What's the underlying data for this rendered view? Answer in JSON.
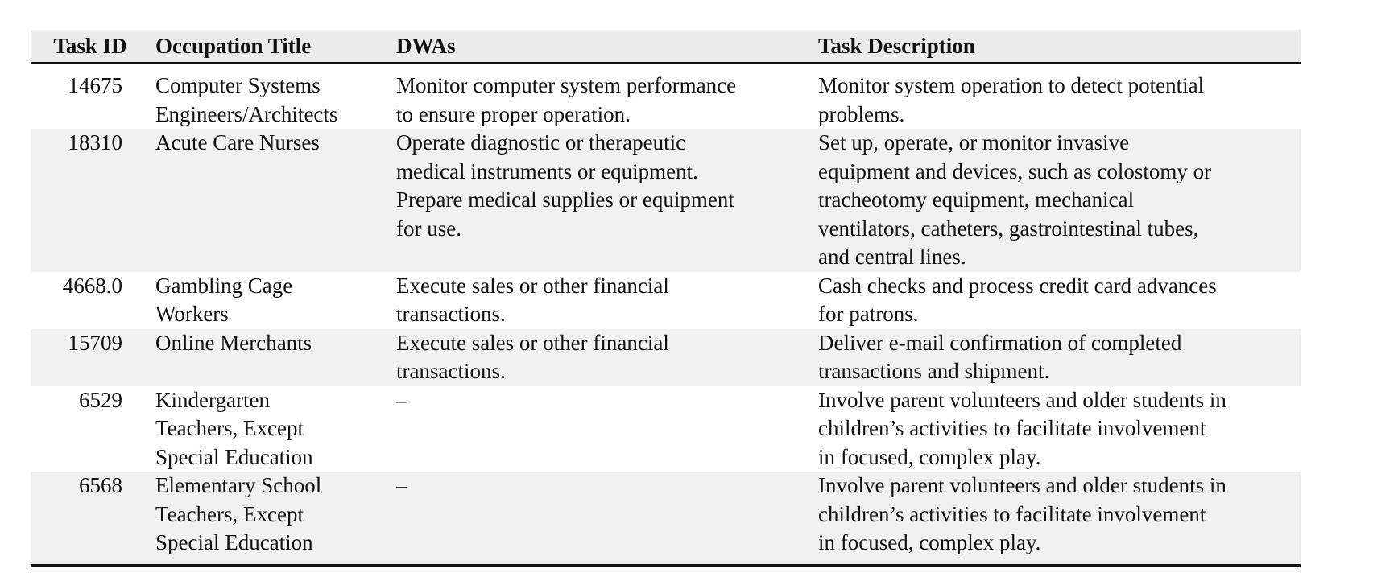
{
  "table": {
    "headers": {
      "task_id": "Task ID",
      "occupation": "Occupation Title",
      "dwas": "DWAs",
      "task_description": "Task Description"
    },
    "rows": [
      {
        "task_id": "14675",
        "occupation": [
          "Computer Systems",
          "Engineers/Architects"
        ],
        "dwas": [
          "Monitor computer system performance",
          "to ensure proper operation."
        ],
        "task_description": [
          "Monitor system operation to detect potential",
          "problems."
        ]
      },
      {
        "task_id": "18310",
        "occupation": [
          "Acute Care Nurses"
        ],
        "dwas": [
          "Operate diagnostic or therapeutic",
          "medical instruments or equipment.",
          "Prepare medical supplies or equipment",
          "for use."
        ],
        "task_description": [
          "Set up, operate, or monitor invasive",
          "equipment and devices, such as colostomy or",
          "tracheotomy equipment, mechanical",
          "ventilators, catheters, gastrointestinal tubes,",
          "and central lines."
        ]
      },
      {
        "task_id": "4668.0",
        "occupation": [
          "Gambling Cage",
          "Workers"
        ],
        "dwas": [
          "Execute sales or other financial",
          "transactions."
        ],
        "task_description": [
          "Cash checks and process credit card advances",
          "for patrons."
        ]
      },
      {
        "task_id": "15709",
        "occupation": [
          "Online Merchants"
        ],
        "dwas": [
          "Execute sales or other financial",
          "transactions."
        ],
        "task_description": [
          "Deliver e-mail confirmation of completed",
          "transactions and shipment."
        ]
      },
      {
        "task_id": "6529",
        "occupation": [
          "Kindergarten",
          "Teachers, Except",
          "Special Education"
        ],
        "dwas": [
          "–"
        ],
        "task_description": [
          "Involve parent volunteers and older students in",
          "children’s activities to facilitate involvement",
          "in focused, complex play."
        ]
      },
      {
        "task_id": "6568",
        "occupation": [
          "Elementary School",
          "Teachers, Except",
          "Special Education"
        ],
        "dwas": [
          "–"
        ],
        "task_description": [
          "Involve parent volunteers and older students in",
          "children’s activities to facilitate involvement",
          "in focused, complex play."
        ]
      }
    ]
  }
}
